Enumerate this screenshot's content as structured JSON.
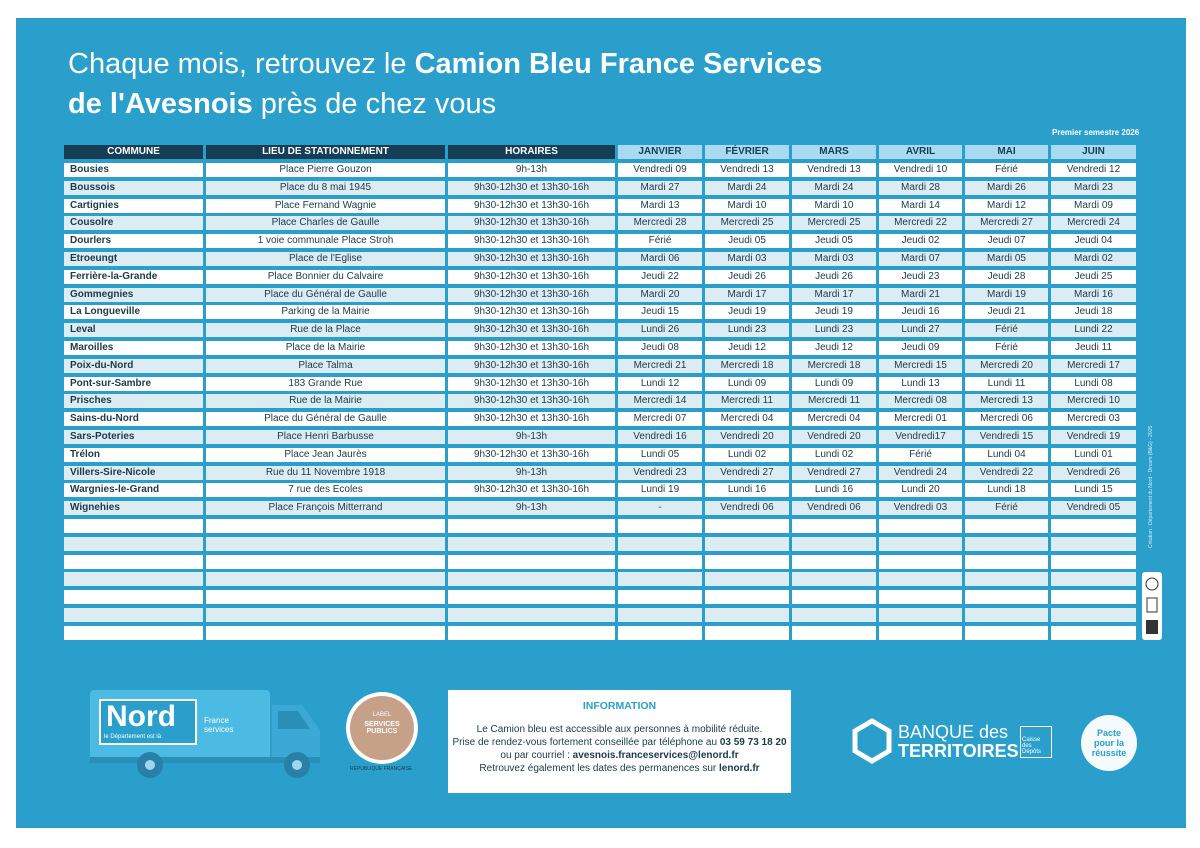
{
  "header": {
    "title_line1_regular": "Chaque mois, retrouvez le ",
    "title_line1_bold": "Camion Bleu France Services",
    "title_line2_bold": "de l'Avesnois",
    "title_line2_regular": " près de chez vous"
  },
  "table": {
    "caption": "Premier semestre 2026",
    "columns": [
      "COMMUNE",
      "LIEU DE STATIONNEMENT",
      "HORAIRES",
      "JANVIER",
      "FÉVRIER",
      "MARS",
      "AVRIL",
      "MAI",
      "JUIN"
    ],
    "rows": [
      [
        "Bousies",
        "Place Pierre Gouzon",
        "9h-13h",
        "Vendredi 09",
        "Vendredi 13",
        "Vendredi 13",
        "Vendredi 10",
        "Férié",
        "Vendredi 12"
      ],
      [
        "Boussois",
        "Place du 8 mai 1945",
        "9h30-12h30 et 13h30-16h",
        "Mardi 27",
        "Mardi 24",
        "Mardi 24",
        "Mardi 28",
        "Mardi 26",
        "Mardi 23"
      ],
      [
        "Cartignies",
        "Place Fernand Wagnie",
        "9h30-12h30 et 13h30-16h",
        "Mardi 13",
        "Mardi 10",
        "Mardi 10",
        "Mardi 14",
        "Mardi 12",
        "Mardi 09"
      ],
      [
        "Cousolre",
        "Place Charles de Gaulle",
        "9h30-12h30 et 13h30-16h",
        "Mercredi 28",
        "Mercredi 25",
        "Mercredi 25",
        "Mercredi 22",
        "Mercredi 27",
        "Mercredi 24"
      ],
      [
        "Dourlers",
        "1 voie communale Place Stroh",
        "9h30-12h30 et 13h30-16h",
        "Férié",
        "Jeudi 05",
        "Jeudi 05",
        "Jeudi 02",
        "Jeudi 07",
        "Jeudi 04"
      ],
      [
        "Etroeungt",
        "Place de l'Eglise",
        "9h30-12h30 et 13h30-16h",
        "Mardi 06",
        "Mardi 03",
        "Mardi 03",
        "Mardi 07",
        "Mardi 05",
        "Mardi 02"
      ],
      [
        "Ferrière-la-Grande",
        "Place Bonnier du Calvaire",
        "9h30-12h30 et 13h30-16h",
        "Jeudi 22",
        "Jeudi 26",
        "Jeudi 26",
        "Jeudi 23",
        "Jeudi 28",
        "Jeudi 25"
      ],
      [
        "Gommegnies",
        "Place du Général de Gaulle",
        "9h30-12h30 et 13h30-16h",
        "Mardi 20",
        "Mardi 17",
        "Mardi 17",
        "Mardi 21",
        "Mardi 19",
        "Mardi 16"
      ],
      [
        "La Longueville",
        "Parking de la Mairie",
        "9h30-12h30 et 13h30-16h",
        "Jeudi 15",
        "Jeudi 19",
        "Jeudi 19",
        "Jeudi 16",
        "Jeudi 21",
        "Jeudi 18"
      ],
      [
        "Leval",
        "Rue de la Place",
        "9h30-12h30 et 13h30-16h",
        "Lundi 26",
        "Lundi 23",
        "Lundi 23",
        "Lundi 27",
        "Férié",
        "Lundi 22"
      ],
      [
        "Maroilles",
        "Place de la Mairie",
        "9h30-12h30 et 13h30-16h",
        "Jeudi 08",
        "Jeudi 12",
        "Jeudi 12",
        "Jeudi 09",
        "Férié",
        "Jeudi 11"
      ],
      [
        "Poix-du-Nord",
        "Place Talma",
        "9h30-12h30 et 13h30-16h",
        "Mercredi 21",
        "Mercredi 18",
        "Mercredi 18",
        "Mercredi 15",
        "Mercredi 20",
        "Mercredi 17"
      ],
      [
        "Pont-sur-Sambre",
        "183 Grande Rue",
        "9h30-12h30 et 13h30-16h",
        "Lundi 12",
        "Lundi 09",
        "Lundi 09",
        "Lundi 13",
        "Lundi 11",
        "Lundi 08"
      ],
      [
        "Prisches",
        "Rue de la Mairie",
        "9h30-12h30 et 13h30-16h",
        "Mercredi 14",
        "Mercredi 11",
        "Mercredi 11",
        "Mercredi 08",
        "Mercredi 13",
        "Mercredi 10"
      ],
      [
        "Sains-du-Nord",
        "Place du Général de Gaulle",
        "9h30-12h30 et 13h30-16h",
        "Mercredi 07",
        "Mercredi 04",
        "Mercredi 04",
        "Mercredi 01",
        "Mercredi 06",
        "Mercredi 03"
      ],
      [
        "Sars-Poteries",
        "Place Henri Barbusse",
        "9h-13h",
        "Vendredi 16",
        "Vendredi 20",
        "Vendredi 20",
        "Vendredi17",
        "Vendredi 15",
        "Vendredi 19"
      ],
      [
        "Trélon",
        "Place Jean Jaurès",
        "9h30-12h30 et 13h30-16h",
        "Lundi 05",
        "Lundi 02",
        "Lundi 02",
        "Férié",
        "Lundi 04",
        "Lundi 01"
      ],
      [
        "Villers-Sire-Nicole",
        "Rue du 11 Novembre 1918",
        "9h-13h",
        "Vendredi 23",
        "Vendredi 27",
        "Vendredi 27",
        "Vendredi 24",
        "Vendredi 22",
        "Vendredi 26"
      ],
      [
        "Wargnies-le-Grand",
        "7 rue des Ecoles",
        "9h30-12h30 et 13h30-16h",
        "Lundi 19",
        "Lundi 16",
        "Lundi 16",
        "Lundi 20",
        "Lundi 18",
        "Lundi 15"
      ],
      [
        "Wignehies",
        "Place François Mitterrand",
        "9h-13h",
        "-",
        "Vendredi 06",
        "Vendredi 06",
        "Vendredi 03",
        "Férié",
        "Vendredi 05"
      ]
    ]
  },
  "information": {
    "title": "INFORMATION",
    "line1": "Le Camion bleu est accessible aux personnes à mobilité réduite.",
    "line2_text": "Prise de rendez-vous fortement conseillée par téléphone au ",
    "line2_phone": "03 59 73 18 20",
    "line3_text": "ou par courriel : ",
    "line3_email": "avesnois.franceservices@lenord.fr",
    "line4_text": "Retrouvez également les dates des permanences sur ",
    "line4_site": "lenord.fr"
  },
  "logos": {
    "nord": "Nord",
    "nord_tagline": "le Département est là",
    "france_services": "France services",
    "label_top": "LABEL",
    "label_main": "SERVICES PUBLICS",
    "republique": "RÉPUBLIQUE FRANÇAISE",
    "banque_line1": "BANQUE des",
    "banque_line2": "TERRITOIRES",
    "caisse": "Caisse des Dépôts",
    "pacte": "Pacte pour la réussite"
  },
  "credit": "Création : Département du Nord - Dircom (B&G) - 2025"
}
